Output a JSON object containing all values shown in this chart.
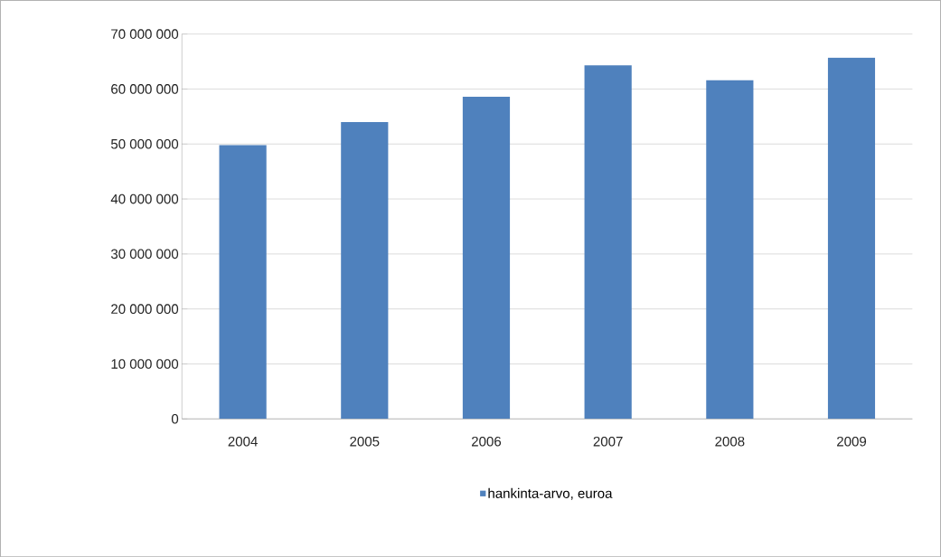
{
  "chart_data": {
    "type": "bar",
    "categories": [
      "2004",
      "2005",
      "2006",
      "2007",
      "2008",
      "2009"
    ],
    "series": [
      {
        "name": "hankinta-arvo, euroa",
        "color": "#4f81bd",
        "values": [
          49800000,
          54000000,
          58600000,
          64300000,
          61600000,
          65700000
        ]
      }
    ],
    "ylim": [
      0,
      70000000
    ],
    "yticks": [
      {
        "value": 0,
        "label": "0"
      },
      {
        "value": 10000000,
        "label": "10 000 000"
      },
      {
        "value": 20000000,
        "label": "20 000 000"
      },
      {
        "value": 30000000,
        "label": "30 000 000"
      },
      {
        "value": 40000000,
        "label": "40 000 000"
      },
      {
        "value": 50000000,
        "label": "50 000 000"
      },
      {
        "value": 60000000,
        "label": "60 000 000"
      },
      {
        "value": 70000000,
        "label": "70 000 000"
      }
    ],
    "grid": "y",
    "legend": "bottom"
  }
}
